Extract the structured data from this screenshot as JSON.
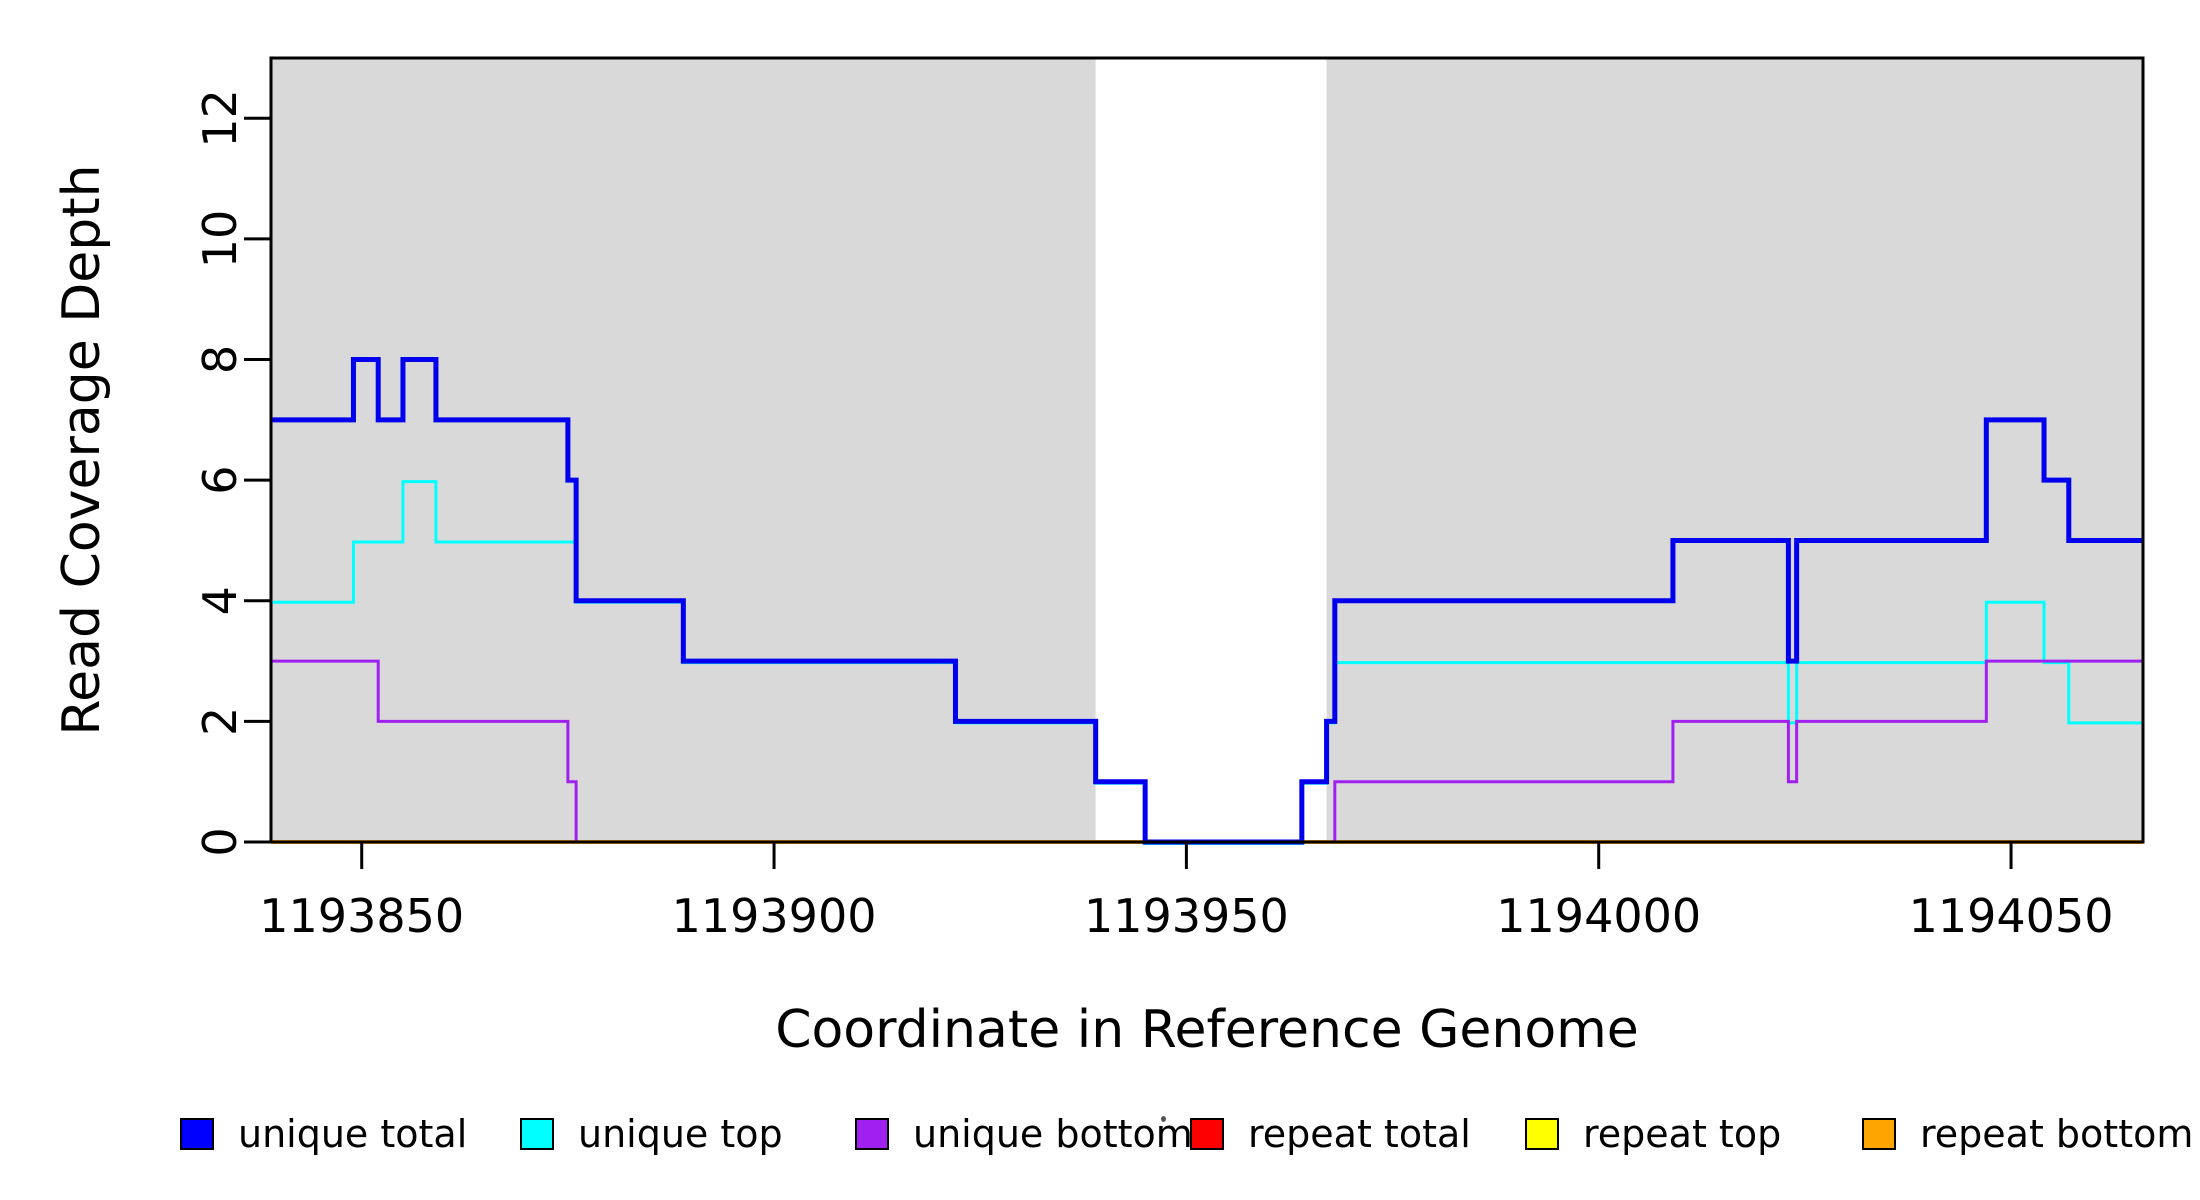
{
  "chart_data": {
    "type": "line",
    "title": "",
    "xlabel": "Coordinate in Reference Genome",
    "ylabel": "Read Coverage Depth",
    "xlim": [
      1193839,
      1194066
    ],
    "ylim": [
      0,
      13
    ],
    "x_ticks": [
      1193850,
      1193900,
      1193950,
      1194000,
      1194050
    ],
    "y_ticks": [
      0,
      2,
      4,
      6,
      8,
      10,
      12
    ],
    "grid": false,
    "legend_position": "bottom",
    "line_style": "step",
    "shaded_regions": [
      {
        "from": 1193839,
        "to": 1193939,
        "color": "#D9D9D9"
      },
      {
        "from": 1193967,
        "to": 1194066,
        "color": "#D9D9D9"
      }
    ],
    "series": [
      {
        "name": "repeat total",
        "color": "#FF0000",
        "width": 4,
        "steps": [
          [
            1193839,
            0
          ]
        ]
      },
      {
        "name": "repeat top",
        "color": "#FFFF00",
        "width": 3,
        "steps": [
          [
            1193839,
            0
          ]
        ]
      },
      {
        "name": "repeat bottom",
        "color": "#FFA500",
        "width": 4,
        "steps": [
          [
            1193839,
            0
          ]
        ]
      },
      {
        "name": "unique top",
        "color": "#00FFFF",
        "width": 3,
        "steps": [
          [
            1193839,
            4
          ],
          [
            1193849,
            5
          ],
          [
            1193855,
            6
          ],
          [
            1193859,
            5
          ],
          [
            1193876,
            4
          ],
          [
            1193889,
            3
          ],
          [
            1193922,
            2
          ],
          [
            1193939,
            1
          ],
          [
            1193945,
            0
          ],
          [
            1193964,
            1
          ],
          [
            1193967,
            2
          ],
          [
            1193968,
            3
          ],
          [
            1194023,
            2
          ],
          [
            1194024,
            3
          ],
          [
            1194047,
            4
          ],
          [
            1194054,
            3
          ],
          [
            1194057,
            2
          ]
        ]
      },
      {
        "name": "unique total",
        "color": "#0000EE",
        "width": 5,
        "steps": [
          [
            1193839,
            7
          ],
          [
            1193849,
            8
          ],
          [
            1193852,
            7
          ],
          [
            1193855,
            8
          ],
          [
            1193859,
            7
          ],
          [
            1193875,
            6
          ],
          [
            1193876,
            4
          ],
          [
            1193889,
            3
          ],
          [
            1193922,
            2
          ],
          [
            1193939,
            1
          ],
          [
            1193945,
            0
          ],
          [
            1193964,
            1
          ],
          [
            1193967,
            2
          ],
          [
            1193968,
            4
          ],
          [
            1194009,
            5
          ],
          [
            1194023,
            3
          ],
          [
            1194024,
            5
          ],
          [
            1194047,
            7
          ],
          [
            1194054,
            6
          ],
          [
            1194057,
            5
          ]
        ]
      },
      {
        "name": "unique bottom",
        "color": "#A020F0",
        "width": 3,
        "steps": [
          [
            1193839,
            3
          ],
          [
            1193852,
            2
          ],
          [
            1193875,
            1
          ],
          [
            1193876,
            0
          ],
          [
            1193968,
            1
          ],
          [
            1194009,
            2
          ],
          [
            1194023,
            1
          ],
          [
            1194024,
            2
          ],
          [
            1194047,
            3
          ]
        ]
      }
    ]
  },
  "legend": {
    "items": [
      {
        "label": "unique total",
        "color": "#0000FF"
      },
      {
        "label": "unique top",
        "color": "#00FFFF"
      },
      {
        "label": "unique bottom",
        "color": "#A020F0"
      },
      {
        "label": "repeat total",
        "color": "#FF0000"
      },
      {
        "label": "repeat top",
        "color": "#FFFF00"
      },
      {
        "label": "repeat bottom",
        "color": "#FFA500"
      }
    ]
  }
}
